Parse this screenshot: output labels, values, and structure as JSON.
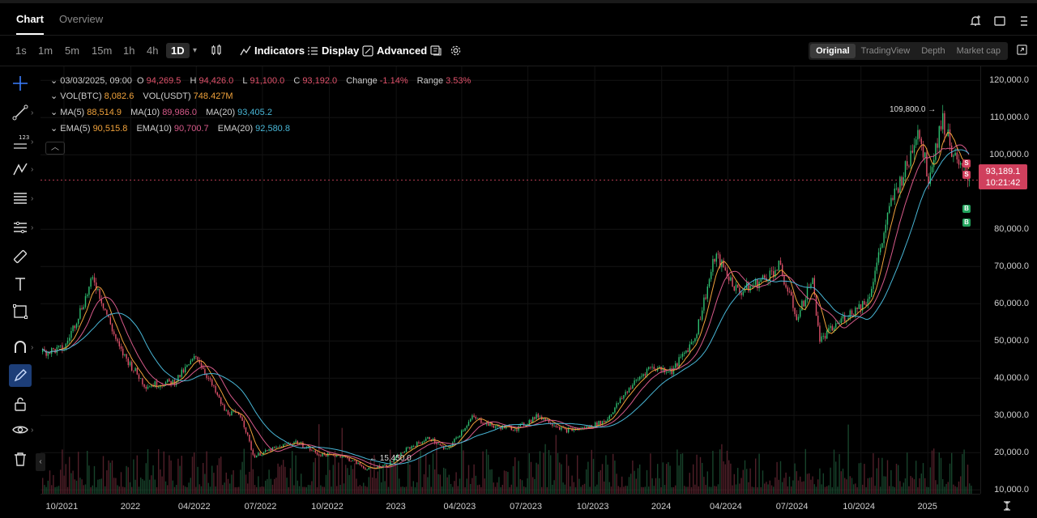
{
  "tabs": [
    {
      "label": "Chart"
    },
    {
      "label": "Overview"
    }
  ],
  "timeframes": [
    "1s",
    "1m",
    "5m",
    "15m",
    "1h",
    "4h",
    "1D"
  ],
  "toolbar": {
    "indicators": "Indicators",
    "display": "Display",
    "advanced": "Advanced"
  },
  "modes": [
    "Original",
    "TradingView",
    "Depth",
    "Market cap"
  ],
  "ohlc": {
    "date": "03/03/2025, 09:00",
    "o_label": "O",
    "o": "94,269.5",
    "h_label": "H",
    "h": "94,426.0",
    "l_label": "L",
    "l": "91,100.0",
    "c_label": "C",
    "c": "93,192.0",
    "change_label": "Change",
    "change": "-1.14%",
    "range_label": "Range",
    "range": "3.53%"
  },
  "vol": {
    "btc_label": "VOL(BTC)",
    "btc": "8,082.6",
    "usdt_label": "VOL(USDT)",
    "usdt": "748.427M"
  },
  "ma": {
    "ma5_label": "MA(5)",
    "ma5": "88,514.9",
    "ma10_label": "MA(10)",
    "ma10": "89,986.0",
    "ma20_label": "MA(20)",
    "ma20": "93,405.2"
  },
  "ema": {
    "ema5_label": "EMA(5)",
    "ema5": "90,515.8",
    "ema10_label": "EMA(10)",
    "ema10": "90,700.7",
    "ema20_label": "EMA(20)",
    "ema20": "92,580.8"
  },
  "price_tag": {
    "price": "93,189.1",
    "countdown": "10:21:42"
  },
  "annotations": {
    "high": "109,800.0 →",
    "low": "← 15,450.0"
  },
  "markers": {
    "sell": "S",
    "buy": "B"
  },
  "chart_data": {
    "type": "line",
    "title": "",
    "ylim": [
      5000,
      122000
    ],
    "y_ticks": [
      "120,000.0",
      "110,000.0",
      "100,000.0",
      "80,000.0",
      "70,000.0",
      "60,000.0",
      "50,000.0",
      "40,000.0",
      "30,000.0",
      "20,000.0",
      "10,000.0"
    ],
    "x_ticks": [
      "10/2021",
      "2022",
      "04/2022",
      "07/2022",
      "10/2022",
      "2023",
      "04/2023",
      "07/2023",
      "10/2023",
      "2024",
      "04/2024",
      "07/2024",
      "10/2024",
      "2025"
    ],
    "series": [
      {
        "x": [
          "2021-09-01",
          "2021-10-01",
          "2021-11-10",
          "2021-12-15",
          "2022-01-20",
          "2022-03-01",
          "2022-04-01",
          "2022-05-10",
          "2022-06-01",
          "2022-06-18",
          "2022-07-15",
          "2022-08-15",
          "2022-09-15",
          "2022-10-15",
          "2022-11-09",
          "2022-11-21",
          "2022-12-20",
          "2023-01-15",
          "2023-02-15",
          "2023-03-10",
          "2023-04-15",
          "2023-05-15",
          "2023-06-15",
          "2023-07-15",
          "2023-08-20",
          "2023-09-15",
          "2023-10-15",
          "2023-11-15",
          "2023-12-15",
          "2024-01-15",
          "2024-02-15",
          "2024-03-14",
          "2024-04-15",
          "2024-05-15",
          "2024-06-10",
          "2024-07-05",
          "2024-07-25",
          "2024-08-05",
          "2024-09-05",
          "2024-10-10",
          "2024-11-12",
          "2024-12-05",
          "2024-12-17",
          "2025-01-01",
          "2025-01-20",
          "2025-02-10",
          "2025-03-03"
        ],
        "values": [
          47000,
          48000,
          67000,
          48000,
          38000,
          39000,
          46000,
          31000,
          30000,
          19000,
          21000,
          23000,
          19500,
          19300,
          17000,
          15450,
          16800,
          21000,
          24000,
          20500,
          29500,
          27000,
          26500,
          30000,
          26000,
          26500,
          28500,
          37000,
          43000,
          42000,
          51000,
          73000,
          63000,
          66000,
          70000,
          56000,
          67000,
          50000,
          56000,
          61000,
          88000,
          98000,
          108000,
          94000,
          109800,
          97000,
          93192
        ]
      }
    ]
  }
}
